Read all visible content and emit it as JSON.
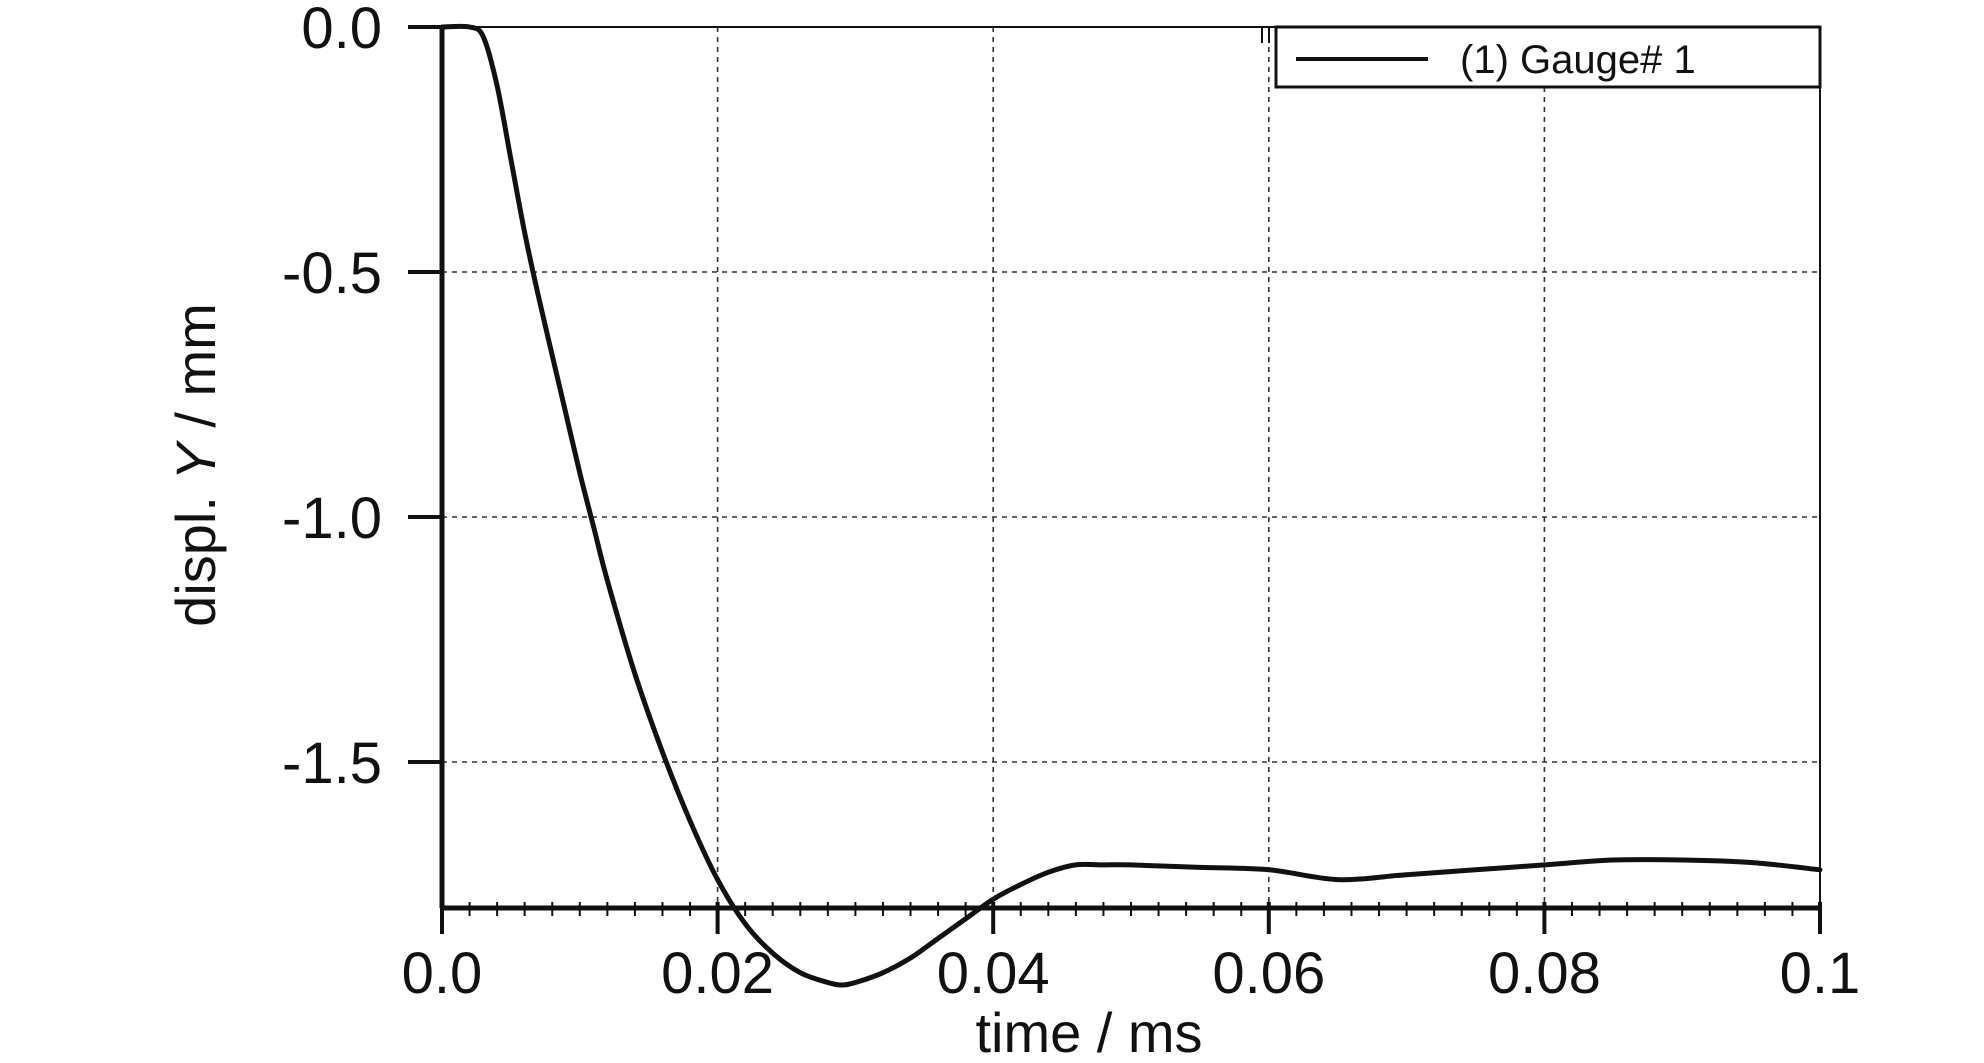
{
  "chart_data": {
    "type": "line",
    "xlabel": "time / ms",
    "ylabel_prefix": "displ. ",
    "ylabel_var": "Y",
    "ylabel_suffix": " / mm",
    "xlim": [
      0.0,
      0.1
    ],
    "ylim": [
      -1.8,
      0.0
    ],
    "x_ticks": [
      0.0,
      0.02,
      0.04,
      0.06,
      0.08,
      0.1
    ],
    "x_tick_labels": [
      "0.0",
      "0.02",
      "0.04",
      "0.06",
      "0.08",
      "0.1"
    ],
    "y_ticks": [
      0.0,
      -0.5,
      -1.0,
      -1.5
    ],
    "y_tick_labels": [
      "0.0",
      "-0.5",
      "-1.0",
      "-1.5"
    ],
    "grid": true,
    "legend_position": "top-right",
    "series": [
      {
        "name": "(1) Gauge# 1",
        "color": "#111111",
        "x": [
          0.0,
          0.002,
          0.003,
          0.004,
          0.005,
          0.006,
          0.007,
          0.008,
          0.009,
          0.01,
          0.011,
          0.012,
          0.014,
          0.016,
          0.018,
          0.02,
          0.022,
          0.024,
          0.026,
          0.028,
          0.029,
          0.03,
          0.032,
          0.034,
          0.036,
          0.038,
          0.04,
          0.042,
          0.044,
          0.046,
          0.048,
          0.05,
          0.055,
          0.06,
          0.065,
          0.07,
          0.075,
          0.08,
          0.085,
          0.09,
          0.095,
          0.1
        ],
        "y": [
          0.0,
          0.0,
          -0.02,
          -0.12,
          -0.27,
          -0.42,
          -0.55,
          -0.67,
          -0.79,
          -0.91,
          -1.02,
          -1.13,
          -1.32,
          -1.48,
          -1.62,
          -1.74,
          -1.83,
          -1.89,
          -1.93,
          -1.95,
          -1.955,
          -1.95,
          -1.93,
          -1.9,
          -1.86,
          -1.82,
          -1.78,
          -1.75,
          -1.725,
          -1.71,
          -1.71,
          -1.71,
          -1.715,
          -1.72,
          -1.74,
          -1.73,
          -1.72,
          -1.71,
          -1.7,
          -1.7,
          -1.705,
          -1.72
        ]
      }
    ]
  }
}
